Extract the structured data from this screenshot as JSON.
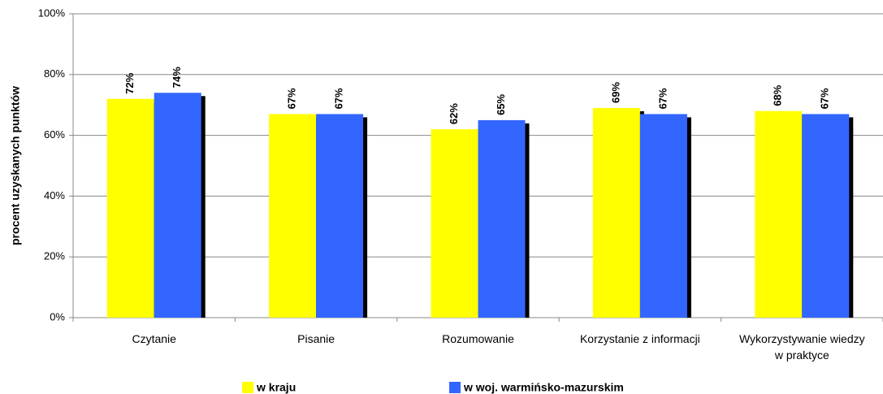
{
  "chart_data": {
    "type": "bar",
    "categories": [
      "Czytanie",
      "Pisanie",
      "Rozumowanie",
      "Korzystanie z informacji",
      "Wykorzystywanie wiedzy w praktyce"
    ],
    "y_label": "procent uzyskanych  punktów",
    "series": [
      {
        "name": "w kraju",
        "color": "#ffff00",
        "values": [
          72,
          67,
          62,
          69,
          68
        ],
        "value_labels": [
          "72%",
          "67%",
          "62%",
          "69%",
          "68%"
        ]
      },
      {
        "name": "w woj. warmińsko-mazurskim",
        "color": "#3366ff",
        "values": [
          74,
          67,
          65,
          67,
          67
        ],
        "value_labels": [
          "74%",
          "67%",
          "65%",
          "67%",
          "67%"
        ]
      }
    ],
    "ylim": [
      0,
      100
    ],
    "yticks": [
      {
        "value": 0,
        "label": "0%"
      },
      {
        "value": 20,
        "label": "20%"
      },
      {
        "value": 40,
        "label": "40%"
      },
      {
        "value": 60,
        "label": "60%"
      },
      {
        "value": 80,
        "label": "80%"
      },
      {
        "value": 100,
        "label": "100%"
      }
    ],
    "grid": true,
    "legend": "bottom"
  }
}
